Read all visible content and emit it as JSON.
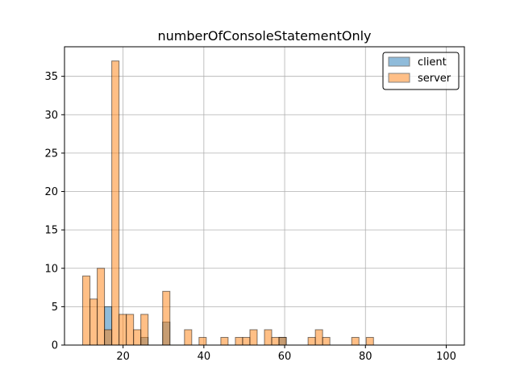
{
  "chart_data": {
    "type": "bar",
    "title": "numberOfConsoleStatementOnly",
    "xlabel": "",
    "ylabel": "",
    "xlim": [
      5.5,
      104.5
    ],
    "ylim": [
      0,
      38.85
    ],
    "xticks": [
      20,
      40,
      60,
      80,
      100
    ],
    "yticks": [
      0,
      5,
      10,
      15,
      20,
      25,
      30,
      35
    ],
    "grid": true,
    "legend_position": "top-right",
    "bin_start": 10,
    "bin_width": 1.8,
    "series": [
      {
        "name": "client",
        "color": "#1f77b4",
        "values": [
          0,
          0,
          0,
          5,
          0,
          0,
          0,
          0,
          1,
          0,
          0,
          3,
          0,
          0,
          0,
          0,
          0,
          0,
          0,
          0,
          0,
          0,
          0,
          0,
          0,
          0,
          0,
          1,
          0,
          0,
          0,
          0,
          0,
          0,
          0,
          0,
          0,
          0,
          0,
          0,
          0,
          0,
          0,
          0,
          0,
          0,
          0,
          0,
          0,
          0
        ]
      },
      {
        "name": "server",
        "color": "#ff7f0e",
        "values": [
          9,
          6,
          10,
          2,
          37,
          4,
          4,
          2,
          4,
          0,
          0,
          7,
          0,
          0,
          2,
          0,
          1,
          0,
          0,
          1,
          0,
          1,
          1,
          2,
          0,
          2,
          1,
          1,
          0,
          0,
          0,
          1,
          2,
          1,
          0,
          0,
          0,
          1,
          0,
          1,
          0,
          0,
          0,
          0,
          0,
          0,
          0,
          0,
          0,
          0
        ]
      }
    ]
  }
}
